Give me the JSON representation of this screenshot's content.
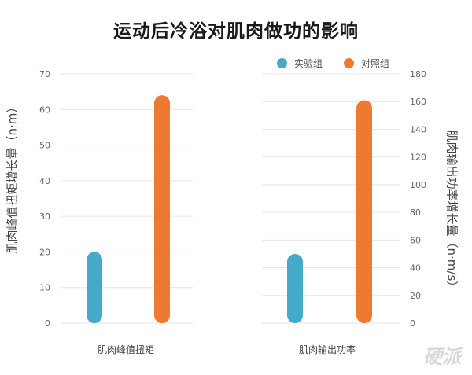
{
  "title": "运动后冷浴对肌肉做功的影响",
  "legend": {
    "experimental": {
      "label": "实验组",
      "color": "#45aac9"
    },
    "control": {
      "label": "对照组",
      "color": "#ee7a2f"
    }
  },
  "watermark": "硬派",
  "chart_data": [
    {
      "type": "bar",
      "categories": [
        "肌肉峰值扭矩"
      ],
      "series": [
        {
          "name": "实验组",
          "values": [
            20
          ]
        },
        {
          "name": "对照组",
          "values": [
            64
          ]
        }
      ],
      "ylabel": "肌肉峰值扭矩增长量（n·m）",
      "ylim": [
        0,
        70
      ],
      "yticks": [
        0,
        10,
        20,
        30,
        40,
        50,
        60,
        70
      ],
      "axis_side": "left",
      "grid": true
    },
    {
      "type": "bar",
      "categories": [
        "肌肉输出功率"
      ],
      "series": [
        {
          "name": "实验组",
          "values": [
            50
          ]
        },
        {
          "name": "对照组",
          "values": [
            161
          ]
        }
      ],
      "ylabel": "肌肉输出功率增长量（n·m/s）",
      "ylim": [
        0,
        180
      ],
      "yticks": [
        0,
        20,
        40,
        60,
        80,
        100,
        120,
        140,
        160,
        180
      ],
      "axis_side": "right",
      "grid": true
    }
  ]
}
